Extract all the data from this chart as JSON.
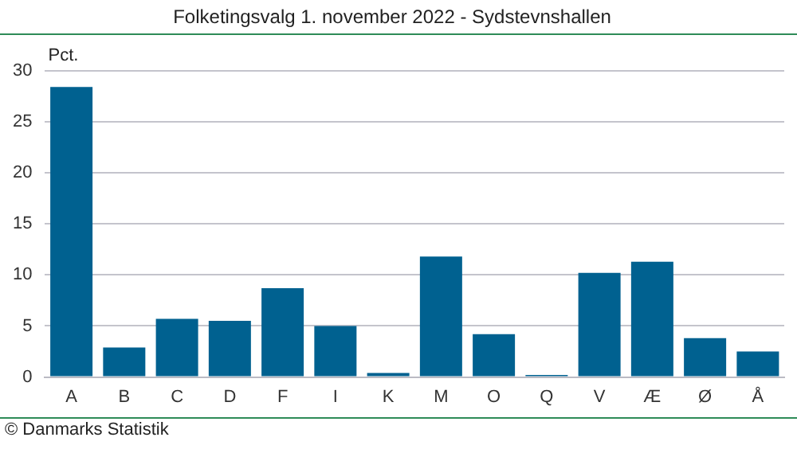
{
  "chart_data": {
    "type": "bar",
    "title": "Folketingsvalg 1. november 2022 - Sydstevnshallen",
    "ylabel": "Pct.",
    "categories": [
      "A",
      "B",
      "C",
      "D",
      "F",
      "I",
      "K",
      "M",
      "O",
      "Q",
      "V",
      "Æ",
      "Ø",
      "Å"
    ],
    "values": [
      28.4,
      2.9,
      5.7,
      5.5,
      8.7,
      5.0,
      0.4,
      11.8,
      4.2,
      0.2,
      10.2,
      11.3,
      3.8,
      2.5
    ],
    "color": "#006190",
    "ylim": [
      0,
      30
    ],
    "yticks": [
      0,
      5,
      10,
      15,
      20,
      25,
      30
    ],
    "grid": "y",
    "legend": false,
    "annotations": [
      "© Danmarks Statistik"
    ]
  }
}
